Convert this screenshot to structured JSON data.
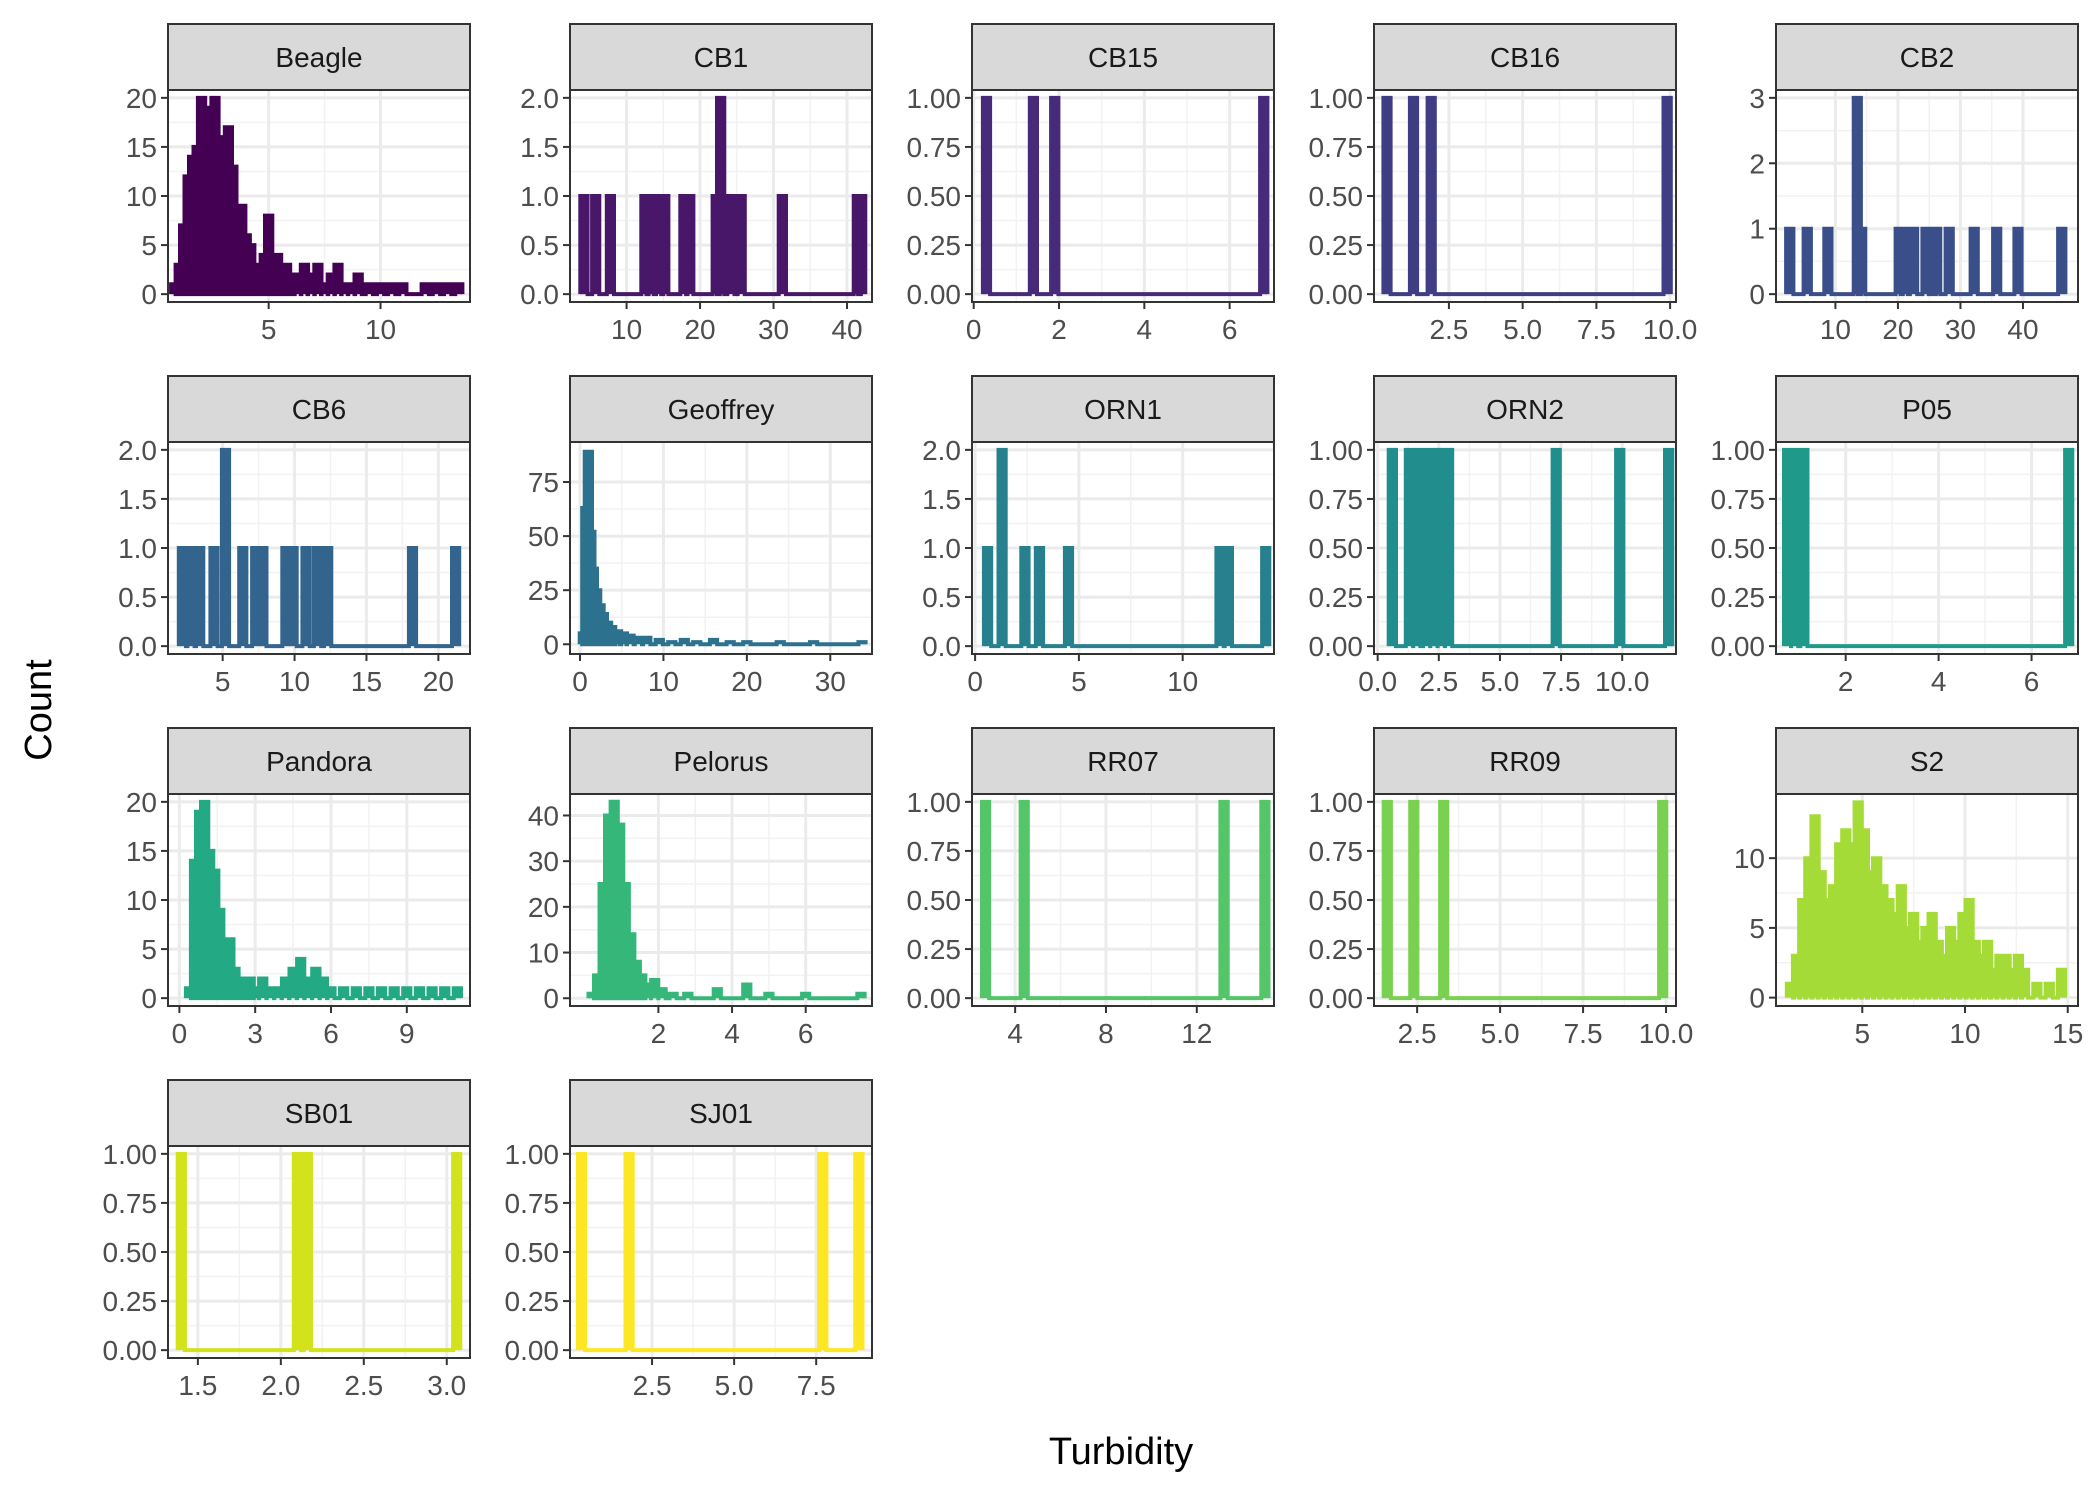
{
  "chart_data": {
    "type": "line",
    "xlabel": "Turbidity",
    "ylabel": "Count",
    "grid": true,
    "legend": "none",
    "panels": [
      {
        "name": "Beagle",
        "color": "#440154",
        "xlim": [
          0.5,
          14.0
        ],
        "xticks": [
          5,
          10
        ],
        "xtick_labels": [
          "5",
          "10"
        ],
        "ylim": [
          -0.8,
          20.8
        ],
        "yticks": [
          0,
          5,
          10,
          15,
          20
        ],
        "ytick_labels": [
          "0",
          "5",
          "10",
          "15",
          "20"
        ],
        "x": [
          0.8,
          1.0,
          1.2,
          1.4,
          1.6,
          1.8,
          2.0,
          2.2,
          2.4,
          2.6,
          2.8,
          3.0,
          3.2,
          3.4,
          3.6,
          3.8,
          4.0,
          4.2,
          4.4,
          4.6,
          4.8,
          5.0,
          5.2,
          5.4,
          5.6,
          5.8,
          6.0,
          6.3,
          6.6,
          6.9,
          7.2,
          7.5,
          7.8,
          8.1,
          8.4,
          8.7,
          9.0,
          9.5,
          10.0,
          10.5,
          11.0,
          11.5,
          12.0,
          12.5,
          13.0,
          13.5
        ],
        "y": [
          1,
          3,
          7,
          12,
          14,
          15,
          20,
          17,
          19,
          20,
          13,
          16,
          17,
          13,
          8,
          9,
          6,
          5,
          3,
          3,
          4,
          8,
          2,
          4,
          2,
          3,
          1,
          2,
          3,
          2,
          3,
          1,
          2,
          3,
          1,
          1,
          2,
          1,
          1,
          1,
          1,
          0,
          1,
          1,
          1,
          1
        ]
      },
      {
        "name": "CB1",
        "color": "#481769",
        "xlim": [
          2.3,
          43.4
        ],
        "xticks": [
          10,
          20,
          30,
          40
        ],
        "xtick_labels": [
          "10",
          "20",
          "30",
          "40"
        ],
        "ylim": [
          -0.08,
          2.08
        ],
        "yticks": [
          0,
          0.5,
          1,
          1.5,
          2
        ],
        "ytick_labels": [
          "0.0",
          "0.5",
          "1.0",
          "1.5",
          "2.0"
        ],
        "x": [
          4.2,
          5.8,
          7.8,
          12.5,
          13.2,
          14.5,
          15.2,
          17.8,
          18.6,
          22.2,
          22.8,
          24.2,
          25.6,
          31.2,
          41.4,
          42.0
        ],
        "y": [
          1,
          1,
          1,
          1,
          1,
          1,
          1,
          1,
          1,
          1,
          2,
          1,
          1,
          1,
          1,
          1
        ]
      },
      {
        "name": "CB15",
        "color": "#472A7A",
        "xlim": [
          -0.04,
          7.04
        ],
        "xticks": [
          0,
          2,
          4,
          6
        ],
        "xtick_labels": [
          "0",
          "2",
          "4",
          "6"
        ],
        "ylim": [
          -0.04,
          1.04
        ],
        "yticks": [
          0,
          0.25,
          0.5,
          0.75,
          1
        ],
        "ytick_labels": [
          "0.00",
          "0.25",
          "0.50",
          "0.75",
          "1.00"
        ],
        "x": [
          0.3,
          1.4,
          1.9,
          6.8
        ],
        "y": [
          1,
          1,
          1,
          1
        ]
      },
      {
        "name": "CB16",
        "color": "#3F3D83",
        "xlim": [
          -0.04,
          10.2
        ],
        "xticks": [
          2.5,
          5.0,
          7.5,
          10.0
        ],
        "xtick_labels": [
          "2.5",
          "5.0",
          "7.5",
          "10.0"
        ],
        "ylim": [
          -0.04,
          1.04
        ],
        "yticks": [
          0,
          0.25,
          0.5,
          0.75,
          1
        ],
        "ytick_labels": [
          "0.00",
          "0.25",
          "0.50",
          "0.75",
          "1.00"
        ],
        "x": [
          0.4,
          1.3,
          1.9,
          9.9
        ],
        "y": [
          1,
          1,
          1,
          1
        ]
      },
      {
        "name": "CB2",
        "color": "#3A4F8A",
        "xlim": [
          0.5,
          48.8
        ],
        "xticks": [
          10,
          20,
          30,
          40
        ],
        "xtick_labels": [
          "10",
          "20",
          "30",
          "40"
        ],
        "ylim": [
          -0.12,
          3.12
        ],
        "yticks": [
          0,
          1,
          2,
          3
        ],
        "ytick_labels": [
          "0",
          "1",
          "2",
          "3"
        ],
        "x": [
          2.7,
          5.5,
          8.8,
          13.5,
          14.2,
          20.2,
          21.0,
          22.5,
          24.5,
          25.5,
          26.2,
          28.2,
          32.2,
          35.8,
          39.2,
          46.2
        ],
        "y": [
          1,
          1,
          1,
          3,
          1,
          1,
          1,
          1,
          1,
          1,
          1,
          1,
          1,
          1,
          1,
          1
        ]
      },
      {
        "name": "CB6",
        "color": "#32648E",
        "xlim": [
          1.2,
          22.2
        ],
        "xticks": [
          5,
          10,
          15,
          20
        ],
        "xtick_labels": [
          "5",
          "10",
          "15",
          "20"
        ],
        "ylim": [
          -0.08,
          2.08
        ],
        "yticks": [
          0,
          0.5,
          1,
          1.5,
          2
        ],
        "ytick_labels": [
          "0.0",
          "0.5",
          "1.0",
          "1.5",
          "2.0"
        ],
        "x": [
          2.2,
          2.8,
          3.4,
          4.4,
          5.2,
          6.4,
          7.3,
          7.8,
          9.4,
          9.9,
          10.8,
          11.6,
          12.3,
          18.2,
          21.2
        ],
        "y": [
          1,
          1,
          1,
          1,
          2,
          1,
          1,
          1,
          1,
          1,
          1,
          1,
          1,
          1,
          1
        ]
      },
      {
        "name": "Geoffrey",
        "color": "#2C728E",
        "xlim": [
          -1.2,
          35.0
        ],
        "xticks": [
          0,
          10,
          20,
          30
        ],
        "xtick_labels": [
          "0",
          "10",
          "20",
          "30"
        ],
        "ylim": [
          -4.5,
          93.5
        ],
        "yticks": [
          0,
          25,
          50,
          75
        ],
        "ytick_labels": [
          "0",
          "25",
          "50",
          "75"
        ],
        "x": [
          0.4,
          0.7,
          1.0,
          1.3,
          1.6,
          2.0,
          2.4,
          2.8,
          3.3,
          3.8,
          4.5,
          5.2,
          6.0,
          7.0,
          8.0,
          9.5,
          11,
          12.5,
          14,
          16,
          18,
          20,
          24,
          28,
          33.8
        ],
        "y": [
          5,
          63,
          89,
          52,
          35,
          25,
          18,
          14,
          10,
          8,
          6,
          5,
          4,
          3,
          3,
          2,
          1,
          2,
          1,
          2,
          1,
          1,
          1,
          1,
          1
        ]
      },
      {
        "name": "ORN1",
        "color": "#27808E",
        "xlim": [
          -0.15,
          14.4
        ],
        "xticks": [
          0,
          5,
          10
        ],
        "xtick_labels": [
          "0",
          "5",
          "10"
        ],
        "ylim": [
          -0.08,
          2.08
        ],
        "yticks": [
          0,
          0.5,
          1,
          1.5,
          2
        ],
        "ytick_labels": [
          "0.0",
          "0.5",
          "1.0",
          "1.5",
          "2.0"
        ],
        "x": [
          0.6,
          1.3,
          2.4,
          3.1,
          4.5,
          11.8,
          12.2,
          14.0
        ],
        "y": [
          1,
          2,
          1,
          1,
          1,
          1,
          1,
          1
        ]
      },
      {
        "name": "ORN2",
        "color": "#218E8D",
        "xlim": [
          -0.15,
          12.2
        ],
        "xticks": [
          0.0,
          2.5,
          5.0,
          7.5,
          10.0
        ],
        "xtick_labels": [
          "0.0",
          "2.5",
          "5.0",
          "7.5",
          "10.0"
        ],
        "ylim": [
          -0.04,
          1.04
        ],
        "yticks": [
          0,
          0.25,
          0.5,
          0.75,
          1
        ],
        "ytick_labels": [
          "0.00",
          "0.25",
          "0.50",
          "0.75",
          "1.00"
        ],
        "x": [
          0.6,
          1.3,
          1.6,
          2.0,
          2.3,
          2.6,
          2.9,
          7.3,
          9.9,
          11.9
        ],
        "y": [
          1,
          1,
          1,
          1,
          1,
          1,
          1,
          1,
          1,
          1
        ]
      },
      {
        "name": "P05",
        "color": "#1F9A8A",
        "xlim": [
          0.5,
          7.0
        ],
        "xticks": [
          2,
          4,
          6
        ],
        "xtick_labels": [
          "2",
          "4",
          "6"
        ],
        "ylim": [
          -0.04,
          1.04
        ],
        "yticks": [
          0,
          0.25,
          0.5,
          0.75,
          1
        ],
        "ytick_labels": [
          "0.00",
          "0.25",
          "0.50",
          "0.75",
          "1.00"
        ],
        "x": [
          0.75,
          0.9,
          1.1,
          6.8
        ],
        "y": [
          1,
          1,
          1,
          1
        ]
      },
      {
        "name": "Pandora",
        "color": "#23A983",
        "xlim": [
          -0.45,
          11.5
        ],
        "xticks": [
          0,
          3,
          6,
          9
        ],
        "xtick_labels": [
          "0",
          "3",
          "6",
          "9"
        ],
        "ylim": [
          -0.8,
          20.8
        ],
        "yticks": [
          0,
          5,
          10,
          15,
          20
        ],
        "ytick_labels": [
          "0",
          "5",
          "10",
          "15",
          "20"
        ],
        "x": [
          0.4,
          0.6,
          0.8,
          1.0,
          1.2,
          1.4,
          1.6,
          1.8,
          2.0,
          2.2,
          2.4,
          2.6,
          2.8,
          3.0,
          3.3,
          3.6,
          3.9,
          4.2,
          4.5,
          4.8,
          5.1,
          5.4,
          5.7,
          6.0,
          6.5,
          7.0,
          7.5,
          8.0,
          8.5,
          9.0,
          9.5,
          10.0,
          10.5,
          11.0
        ],
        "y": [
          1,
          14,
          19,
          20,
          15,
          13,
          9,
          5,
          6,
          3,
          2,
          1,
          2,
          1,
          2,
          1,
          1,
          2,
          3,
          4,
          2,
          3,
          2,
          1,
          1,
          1,
          1,
          1,
          1,
          1,
          1,
          1,
          1,
          1
        ]
      },
      {
        "name": "Pelorus",
        "color": "#35B779",
        "xlim": [
          -0.4,
          7.8
        ],
        "xticks": [
          2,
          4,
          6
        ],
        "xtick_labels": [
          "2",
          "4",
          "6"
        ],
        "ylim": [
          -1.7,
          44.7
        ],
        "yticks": [
          0,
          10,
          20,
          30,
          40
        ],
        "ytick_labels": [
          "0",
          "10",
          "20",
          "30",
          "40"
        ],
        "x": [
          0.2,
          0.35,
          0.5,
          0.65,
          0.8,
          0.95,
          1.1,
          1.25,
          1.4,
          1.55,
          1.7,
          1.9,
          2.1,
          2.4,
          2.8,
          3.2,
          3.6,
          4.0,
          4.4,
          5.0,
          6.0,
          7.5
        ],
        "y": [
          1,
          5,
          25,
          40,
          43,
          38,
          25,
          14,
          8,
          5,
          3,
          4,
          2,
          1,
          1,
          0,
          2,
          0,
          3,
          1,
          1,
          1
        ]
      },
      {
        "name": "RR07",
        "color": "#54C568",
        "xlim": [
          2.1,
          15.4
        ],
        "xticks": [
          4,
          8,
          12
        ],
        "xtick_labels": [
          "4",
          "8",
          "12"
        ],
        "ylim": [
          -0.04,
          1.04
        ],
        "yticks": [
          0,
          0.25,
          0.5,
          0.75,
          1
        ],
        "ytick_labels": [
          "0.00",
          "0.25",
          "0.50",
          "0.75",
          "1.00"
        ],
        "x": [
          2.7,
          4.4,
          13.2,
          15.0
        ],
        "y": [
          1,
          1,
          1,
          1
        ]
      },
      {
        "name": "RR09",
        "color": "#7AD151",
        "xlim": [
          1.2,
          10.3
        ],
        "xticks": [
          2.5,
          5.0,
          7.5,
          10.0
        ],
        "xtick_labels": [
          "2.5",
          "5.0",
          "7.5",
          "10.0"
        ],
        "ylim": [
          -0.04,
          1.04
        ],
        "yticks": [
          0,
          0.25,
          0.5,
          0.75,
          1
        ],
        "ytick_labels": [
          "0.00",
          "0.25",
          "0.50",
          "0.75",
          "1.00"
        ],
        "x": [
          1.6,
          2.4,
          3.3,
          9.9
        ],
        "y": [
          1,
          1,
          1,
          1
        ]
      },
      {
        "name": "S2",
        "color": "#A5DB36",
        "xlim": [
          0.8,
          15.5
        ],
        "xticks": [
          5,
          10,
          15
        ],
        "xtick_labels": [
          "5",
          "10",
          "15"
        ],
        "ylim": [
          -0.6,
          14.6
        ],
        "yticks": [
          0,
          5,
          10
        ],
        "ytick_labels": [
          "0",
          "5",
          "10"
        ],
        "x": [
          1.5,
          1.8,
          2.1,
          2.4,
          2.7,
          3.0,
          3.3,
          3.6,
          3.9,
          4.2,
          4.5,
          4.8,
          5.1,
          5.4,
          5.7,
          6.0,
          6.3,
          6.6,
          6.9,
          7.2,
          7.5,
          7.8,
          8.1,
          8.4,
          8.7,
          9.0,
          9.3,
          9.6,
          9.9,
          10.2,
          10.5,
          10.8,
          11.1,
          11.4,
          11.7,
          12.0,
          12.3,
          12.6,
          12.9,
          13.5,
          14.1,
          14.7
        ],
        "y": [
          1,
          3,
          7,
          10,
          13,
          9,
          7,
          8,
          11,
          12,
          11,
          14,
          12,
          9,
          10,
          8,
          7,
          6,
          8,
          5,
          6,
          4,
          5,
          6,
          4,
          3,
          5,
          4,
          6,
          7,
          4,
          3,
          4,
          2,
          3,
          3,
          2,
          3,
          2,
          1,
          1,
          2
        ]
      },
      {
        "name": "SB01",
        "color": "#D2E21B",
        "xlim": [
          1.32,
          3.14
        ],
        "xticks": [
          1.5,
          2.0,
          2.5,
          3.0
        ],
        "xtick_labels": [
          "1.5",
          "2.0",
          "2.5",
          "3.0"
        ],
        "ylim": [
          -0.04,
          1.04
        ],
        "yticks": [
          0,
          0.25,
          0.5,
          0.75,
          1
        ],
        "ytick_labels": [
          "0.00",
          "0.25",
          "0.50",
          "0.75",
          "1.00"
        ],
        "x": [
          1.4,
          2.1,
          2.16,
          3.06
        ],
        "y": [
          1,
          1,
          1,
          1
        ]
      },
      {
        "name": "SJ01",
        "color": "#FDE725",
        "xlim": [
          0.0,
          9.2
        ],
        "xticks": [
          2.5,
          5.0,
          7.5
        ],
        "xtick_labels": [
          "2.5",
          "5.0",
          "7.5"
        ],
        "ylim": [
          -0.04,
          1.04
        ],
        "yticks": [
          0,
          0.25,
          0.5,
          0.75,
          1
        ],
        "ytick_labels": [
          "0.00",
          "0.25",
          "0.50",
          "0.75",
          "1.00"
        ],
        "x": [
          0.35,
          1.8,
          7.7,
          8.8
        ],
        "y": [
          1,
          1,
          1,
          1
        ]
      }
    ]
  }
}
